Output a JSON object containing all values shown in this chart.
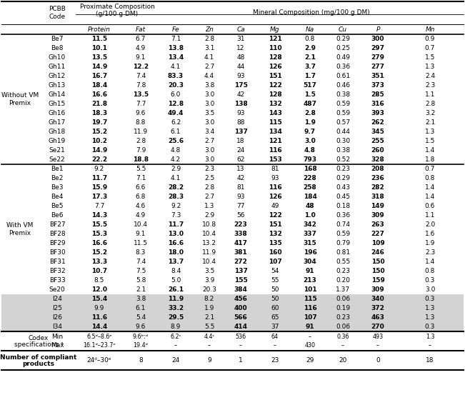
{
  "rows_group1": [
    [
      "Be7",
      "11.5",
      "6.7",
      "7.1",
      "2.8",
      "31",
      "121",
      "0.8",
      "0.29",
      "300",
      "0.9"
    ],
    [
      "Be8",
      "10.1",
      "4.9",
      "13.8",
      "3.1",
      "12",
      "110",
      "2.9",
      "0.25",
      "297",
      "0.7"
    ],
    [
      "Gh10",
      "13.5",
      "9.1",
      "13.4",
      "4.1",
      "48",
      "128",
      "2.1",
      "0.49",
      "279",
      "1.5"
    ],
    [
      "Gh11",
      "14.9",
      "12.2",
      "4.1",
      "2.7",
      "44",
      "126",
      "3.7",
      "0.36",
      "277",
      "1.3"
    ],
    [
      "Gh12",
      "16.7",
      "7.4",
      "83.3",
      "4.4",
      "93",
      "151",
      "1.7",
      "0.61",
      "351",
      "2.4"
    ],
    [
      "Gh13",
      "18.4",
      "7.8",
      "20.3",
      "3.8",
      "175",
      "122",
      "517",
      "0.46",
      "373",
      "2.3"
    ],
    [
      "Gh14",
      "16.6",
      "13.5",
      "6.0",
      "3.0",
      "42",
      "128",
      "1.5",
      "0.38",
      "285",
      "1.1"
    ],
    [
      "Gh15",
      "21.8",
      "7.7",
      "12.8",
      "3.0",
      "138",
      "132",
      "487",
      "0.59",
      "316",
      "2.8"
    ],
    [
      "Gh16",
      "18.3",
      "9.6",
      "49.4",
      "3.5",
      "93",
      "143",
      "2.8",
      "0.59",
      "393",
      "3.2"
    ],
    [
      "Gh17",
      "19.7",
      "8.8",
      "6.2",
      "3.0",
      "88",
      "115",
      "1.9",
      "0.57",
      "262",
      "2.1"
    ],
    [
      "Gh18",
      "15.2",
      "11.9",
      "6.1",
      "3.4",
      "137",
      "134",
      "9.7",
      "0.44",
      "345",
      "1.3"
    ],
    [
      "Gh19",
      "10.2",
      "2.8",
      "25.6",
      "2.7",
      "18",
      "121",
      "3.0",
      "0.30",
      "255",
      "1.5"
    ],
    [
      "Se21",
      "14.9",
      "7.9",
      "4.8",
      "3.0",
      "24",
      "116",
      "4.8",
      "0.38",
      "260",
      "1.4"
    ],
    [
      "Se22",
      "22.2",
      "18.8",
      "4.2",
      "3.0",
      "62",
      "153",
      "793",
      "0.52",
      "328",
      "1.8"
    ]
  ],
  "rows_group2": [
    [
      "Be1",
      "9.2",
      "5.5",
      "2.9",
      "2.3",
      "13",
      "81",
      "168",
      "0.23",
      "208",
      "0.7"
    ],
    [
      "Be2",
      "11.7",
      "7.1",
      "4.1",
      "2.5",
      "42",
      "93",
      "228",
      "0.29",
      "236",
      "0.8"
    ],
    [
      "Be3",
      "15.9",
      "6.6",
      "28.2",
      "2.8",
      "81",
      "116",
      "258",
      "0.43",
      "282",
      "1.4"
    ],
    [
      "Be4",
      "17.3",
      "6.8",
      "28.3",
      "2.7",
      "93",
      "126",
      "184",
      "0.45",
      "318",
      "1.4"
    ],
    [
      "Be5",
      "7.7",
      "4.6",
      "9.2",
      "1.3",
      "77",
      "49",
      "48",
      "0.18",
      "149",
      "0.6"
    ],
    [
      "Be6",
      "14.3",
      "4.9",
      "7.3",
      "2.9",
      "56",
      "122",
      "1.0",
      "0.36",
      "309",
      "1.1"
    ],
    [
      "BF27",
      "15.5",
      "10.4",
      "11.7",
      "10.8",
      "223",
      "151",
      "342",
      "0.74",
      "263",
      "2.0"
    ],
    [
      "BF28",
      "15.3",
      "9.1",
      "13.0",
      "10.4",
      "338",
      "132",
      "337",
      "0.59",
      "227",
      "1.6"
    ],
    [
      "BF29",
      "16.6",
      "11.5",
      "16.6",
      "13.2",
      "417",
      "135",
      "315",
      "0.79",
      "109",
      "1.9"
    ],
    [
      "BF30",
      "15.2",
      "8.3",
      "18.0",
      "11.9",
      "381",
      "160",
      "196",
      "0.81",
      "246",
      "2.3"
    ],
    [
      "BF31",
      "13.3",
      "7.4",
      "13.7",
      "10.4",
      "272",
      "107",
      "304",
      "0.55",
      "150",
      "1.4"
    ],
    [
      "BF32",
      "10.7",
      "7.5",
      "8.4",
      "3.5",
      "137",
      "54",
      "91",
      "0.23",
      "150",
      "0.8"
    ],
    [
      "BF33",
      "8.5",
      "5.8",
      "5.0",
      "3.9",
      "155",
      "55",
      "213",
      "0.20",
      "159",
      "0.3"
    ],
    [
      "Se20",
      "12.0",
      "2.1",
      "26.1",
      "20.3",
      "384",
      "50",
      "101",
      "1.37",
      "309",
      "3.0"
    ]
  ],
  "rows_shaded": [
    [
      "I24",
      "15.4",
      "3.8",
      "11.9",
      "8.2",
      "456",
      "50",
      "115",
      "0.06",
      "340",
      "0.3"
    ],
    [
      "I25",
      "9.9",
      "6.1",
      "33.2",
      "1.9",
      "400",
      "60",
      "116",
      "0.19",
      "372",
      "1.3"
    ],
    [
      "I26",
      "11.6",
      "5.4",
      "29.5",
      "2.1",
      "566",
      "65",
      "107",
      "0.23",
      "463",
      "1.3"
    ],
    [
      "I34",
      "14.4",
      "9.6",
      "8.9",
      "5.5",
      "414",
      "37",
      "91",
      "0.06",
      "270",
      "0.3"
    ]
  ],
  "codex_min": [
    "Min",
    "6.5ᵈ–8.6ᵉ",
    "9.6ᵇːᵈ",
    "6.2ᶜ",
    "4.4ᶜ",
    "536",
    "64",
    "–",
    "0.36",
    "493",
    "1.3"
  ],
  "codex_max": [
    "Max",
    "16.1ᵈ–23.7ᵉ",
    "19.4ᵈ",
    "–",
    "–",
    "–",
    "–",
    "430",
    "–",
    "–",
    "–"
  ],
  "compliant": [
    "24ᵈ–30ᵉ",
    "8",
    "24",
    "9",
    "1",
    "23",
    "29",
    "20",
    "0",
    "18"
  ],
  "group1_label": "Without VM\nPremix",
  "group2_label": "With VM\nPremix",
  "col_names": [
    "Protein",
    "Fat",
    "Fe",
    "Zn",
    "Ca",
    "Mg",
    "Na",
    "Cu",
    "P",
    "Mn"
  ],
  "shaded_color": "#d3d3d3"
}
